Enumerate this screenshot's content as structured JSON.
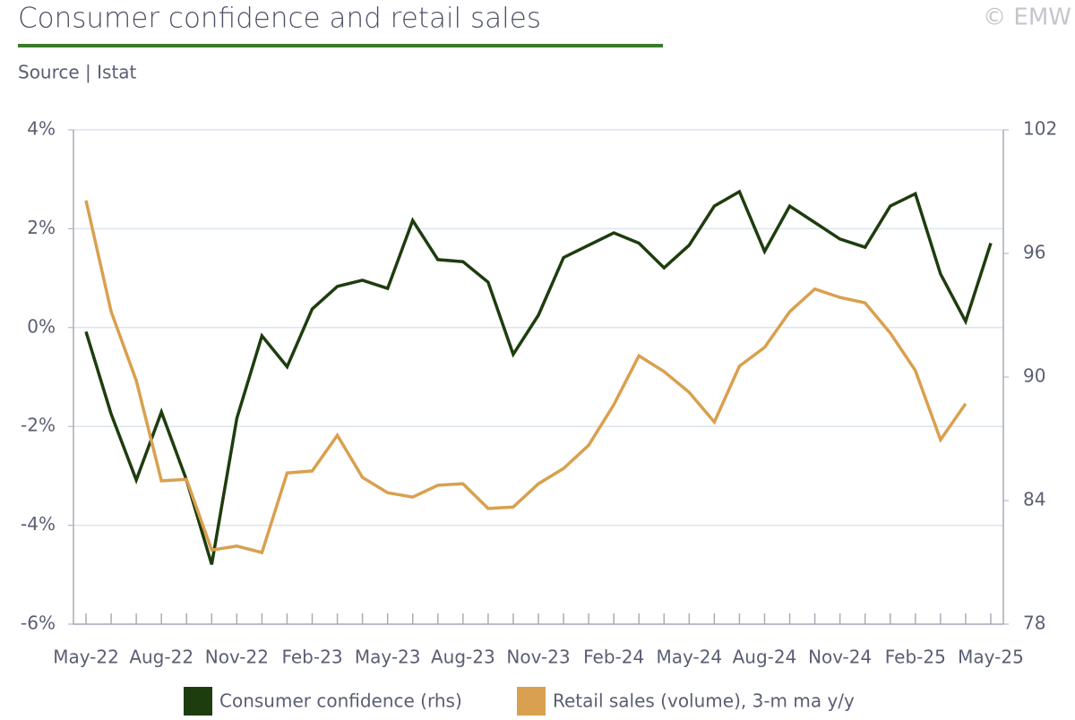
{
  "chart_data": {
    "type": "line",
    "title": "Consumer confidence and retail sales",
    "subtitle": "Source | Istat",
    "copyright": "© EMW",
    "categories": [
      "May-22",
      null,
      null,
      "Aug-22",
      null,
      null,
      "Nov-22",
      null,
      null,
      "Feb-23",
      null,
      null,
      "May-23",
      null,
      null,
      "Aug-23",
      null,
      null,
      "Nov-23",
      null,
      null,
      "Feb-24",
      null,
      null,
      "May-24",
      null,
      null,
      "Aug-24",
      null,
      null,
      "Nov-24",
      null,
      null,
      "Feb-25",
      null,
      null,
      "May-25"
    ],
    "series": [
      {
        "name": "Consumer confidence (rhs)",
        "color": "#1e3d0e",
        "axis": "y2",
        "values": [
          92.2,
          88.2,
          85.0,
          88.3,
          85.0,
          80.9,
          88.0,
          92.0,
          90.5,
          93.3,
          94.4,
          94.7,
          94.3,
          97.6,
          95.7,
          95.6,
          94.6,
          91.1,
          93.0,
          95.8,
          96.4,
          97.0,
          96.5,
          95.3,
          96.4,
          98.3,
          99.0,
          96.1,
          98.3,
          97.5,
          96.7,
          96.3,
          98.3,
          98.9,
          95.0,
          92.7,
          96.5
        ]
      },
      {
        "name": "Retail sales (volume), 3-m ma y/y",
        "color": "#d9a04f",
        "values": [
          2.57,
          0.32,
          -1.07,
          -3.1,
          -3.07,
          -4.5,
          -4.42,
          -4.55,
          -2.94,
          -2.9,
          -2.18,
          -3.03,
          -3.34,
          -3.43,
          -3.19,
          -3.16,
          -3.66,
          -3.63,
          -3.16,
          -2.85,
          -2.38,
          -1.56,
          -0.57,
          -0.89,
          -1.31,
          -1.91,
          -0.78,
          -0.4,
          0.32,
          0.78,
          0.61,
          0.5,
          -0.11,
          -0.87,
          -2.27,
          -1.54,
          null
        ]
      }
    ],
    "ylim": [
      -6,
      4
    ],
    "yticks": [
      {
        "value": 4,
        "label": "4%"
      },
      {
        "value": 2,
        "label": "2%"
      },
      {
        "value": 0,
        "label": "0%"
      },
      {
        "value": -2,
        "label": "-2%"
      },
      {
        "value": -4,
        "label": "-4%"
      },
      {
        "value": -6,
        "label": "-6%"
      }
    ],
    "y2lim": [
      78,
      102
    ],
    "y2ticks": [
      102,
      96,
      90,
      84,
      78
    ],
    "grid": true,
    "legend": "bottom"
  }
}
